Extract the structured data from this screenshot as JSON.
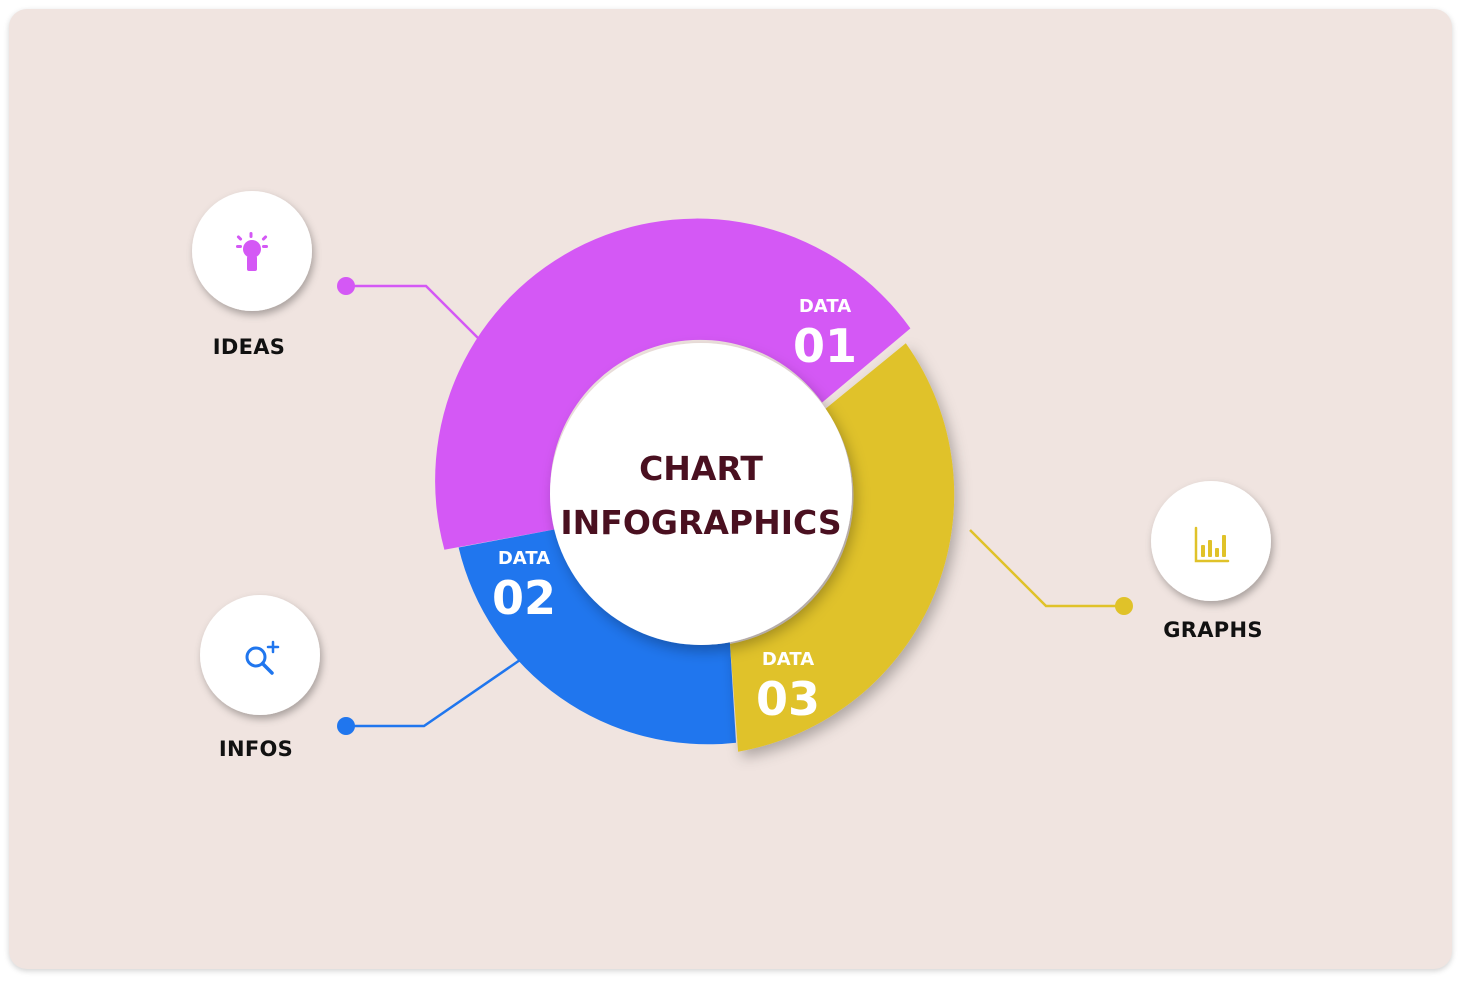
{
  "center": {
    "line1": "CHART",
    "line2": "INFOGRAPHICS",
    "color": "#4a1020"
  },
  "segments": [
    {
      "id": "data01",
      "caption": "DATA",
      "number": "01",
      "color": "#d458f5"
    },
    {
      "id": "data02",
      "caption": "DATA",
      "number": "02",
      "color": "#2076ee"
    },
    {
      "id": "data03",
      "caption": "DATA",
      "number": "03",
      "color": "#e0c229"
    }
  ],
  "nodes": [
    {
      "id": "ideas",
      "label": "IDEAS",
      "icon": "lightbulb-icon",
      "color": "#d458f5"
    },
    {
      "id": "infos",
      "label": "INFOS",
      "icon": "search-plus-icon",
      "color": "#2076ee"
    },
    {
      "id": "graphs",
      "label": "GRAPHS",
      "icon": "bar-chart-icon",
      "color": "#e0c229"
    }
  ]
}
